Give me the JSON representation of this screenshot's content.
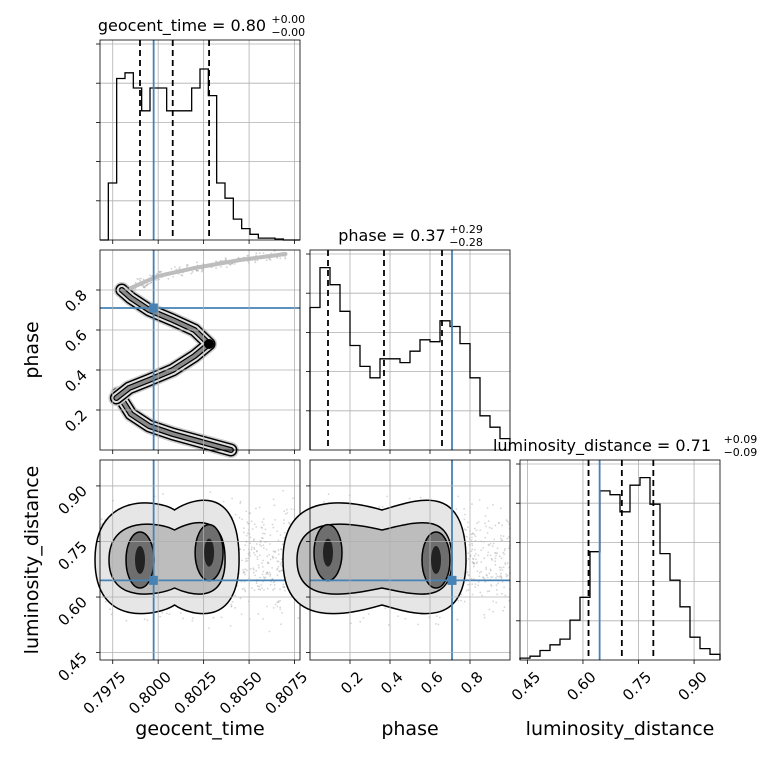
{
  "chart_data": {
    "type": "corner",
    "parameters": [
      "geocent_time",
      "phase",
      "luminosity_distance"
    ],
    "truth_color": "#4682b4",
    "line_color": "#000000",
    "grid": true,
    "diagonal": [
      {
        "param": "geocent_time",
        "title": "geocent_time = 0.80",
        "title_plus": "+0.00",
        "title_minus": "−0.00",
        "range": [
          0.7968,
          0.8078
        ],
        "ticks": [
          0.7975,
          0.8,
          0.8025,
          0.805,
          0.8075
        ],
        "tick_labels": [
          "0.7975",
          "0.8000",
          "0.8025",
          "0.8050",
          "0.8075"
        ],
        "quantiles": [
          0.799,
          0.8008,
          0.8028
        ],
        "truth": 0.79975,
        "hist_max": 1.0,
        "hist": [
          0.0,
          0.3,
          0.85,
          0.88,
          0.8,
          0.68,
          0.8,
          0.8,
          0.68,
          0.68,
          0.68,
          0.8,
          0.9,
          0.76,
          0.3,
          0.22,
          0.11,
          0.06,
          0.03,
          0.01,
          0.01,
          0.005,
          0.0,
          0.0
        ]
      },
      {
        "param": "phase",
        "title": "phase = 0.37",
        "title_plus": "+0.29",
        "title_minus": "−0.28",
        "range": [
          0.0,
          1.0
        ],
        "ticks": [
          0.2,
          0.4,
          0.6,
          0.8
        ],
        "tick_labels": [
          "0.2",
          "0.4",
          "0.6",
          "0.8"
        ],
        "quantiles": [
          0.09,
          0.37,
          0.66
        ],
        "truth": 0.71,
        "hist_max": 1.0,
        "hist": [
          0.75,
          0.96,
          0.87,
          0.73,
          0.55,
          0.44,
          0.38,
          0.48,
          0.48,
          0.46,
          0.52,
          0.58,
          0.57,
          0.68,
          0.65,
          0.56,
          0.38,
          0.18,
          0.12,
          0.06
        ]
      },
      {
        "param": "luminosity_distance",
        "title": "luminosity_distance = 0.71",
        "title_plus": "+0.09",
        "title_minus": "−0.09",
        "range": [
          0.43,
          0.97
        ],
        "ticks": [
          0.45,
          0.6,
          0.75,
          0.9
        ],
        "tick_labels": [
          "0.45",
          "0.60",
          "0.75",
          "0.90"
        ],
        "quantiles": [
          0.615,
          0.705,
          0.79
        ],
        "truth": 0.645,
        "hist_max": 1.0,
        "hist": [
          0.01,
          0.02,
          0.05,
          0.08,
          0.11,
          0.21,
          0.33,
          0.57,
          0.89,
          0.87,
          0.78,
          0.92,
          0.96,
          0.82,
          0.56,
          0.42,
          0.28,
          0.12,
          0.06,
          0.03
        ]
      }
    ],
    "axis_labels": {
      "x": [
        "geocent_time",
        "phase",
        "luminosity_distance"
      ],
      "y": [
        "phase",
        "luminosity_distance"
      ]
    },
    "truths": {
      "geocent_time": 0.79975,
      "phase": 0.71,
      "luminosity_distance": 0.645
    },
    "pairs": [
      {
        "x": "geocent_time",
        "y": "phase",
        "xlim": [
          0.7968,
          0.8078
        ],
        "ylim": [
          0.0,
          1.0
        ],
        "ridge": [
          [
            0.7978,
            0.28
          ],
          [
            0.7985,
            0.18
          ],
          [
            0.7995,
            0.12
          ],
          [
            0.8008,
            0.08
          ],
          [
            0.802,
            0.05
          ],
          [
            0.8032,
            0.02
          ],
          [
            0.804,
            0.0
          ]
        ],
        "ridge2": [
          [
            0.7977,
            0.26
          ],
          [
            0.7984,
            0.31
          ],
          [
            0.7995,
            0.35
          ],
          [
            0.8008,
            0.4
          ],
          [
            0.802,
            0.47
          ],
          [
            0.8028,
            0.53
          ],
          [
            0.802,
            0.6
          ],
          [
            0.8008,
            0.65
          ],
          [
            0.7995,
            0.7
          ],
          [
            0.7985,
            0.76
          ],
          [
            0.798,
            0.8
          ]
        ],
        "ridge3": [
          [
            0.7985,
            0.81
          ],
          [
            0.8,
            0.87
          ],
          [
            0.802,
            0.91
          ],
          [
            0.8045,
            0.95
          ],
          [
            0.807,
            0.98
          ]
        ],
        "peak": [
          0.8028,
          0.53
        ]
      },
      {
        "x": "geocent_time",
        "y": "luminosity_distance",
        "xlim": [
          0.7968,
          0.8078
        ],
        "ylim": [
          0.43,
          0.97
        ],
        "blobs": [
          [
            0.799,
            0.7
          ],
          [
            0.8028,
            0.72
          ]
        ]
      },
      {
        "x": "phase",
        "y": "luminosity_distance",
        "xlim": [
          0.0,
          1.0
        ],
        "ylim": [
          0.43,
          0.97
        ],
        "blobs": [
          [
            0.09,
            0.72
          ],
          [
            0.63,
            0.7
          ]
        ]
      }
    ]
  }
}
